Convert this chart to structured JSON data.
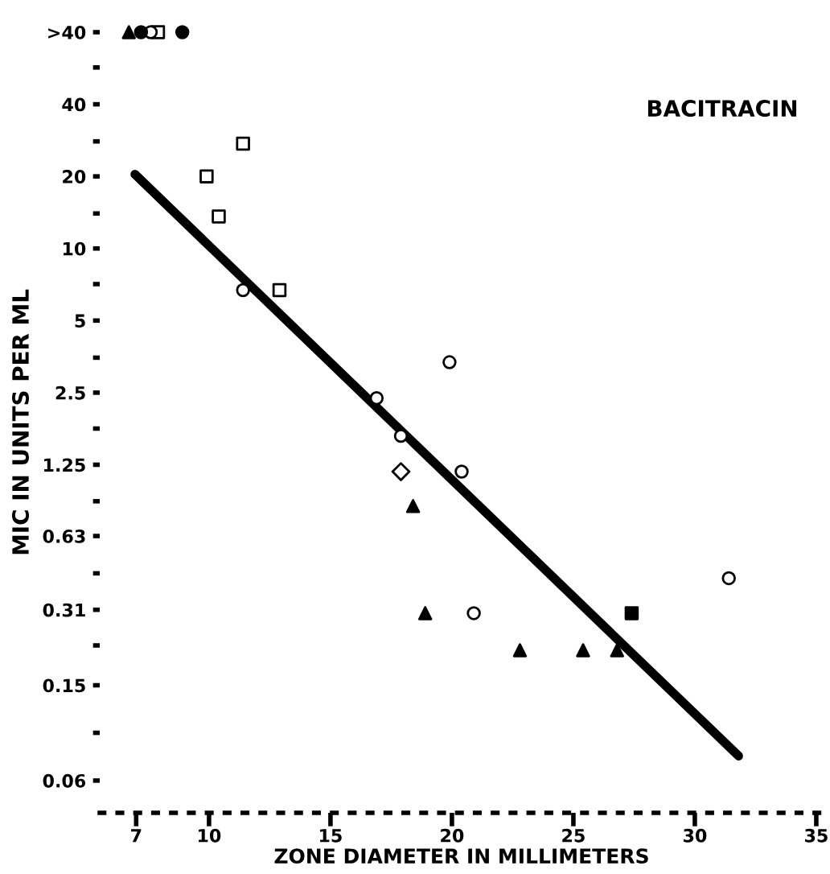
{
  "chart_data": {
    "type": "scatter",
    "title": "BACITRACIN",
    "xlabel": "ZONE DIAMETER IN MILLIMETERS",
    "ylabel": "MIC IN UNITS PER ML",
    "log": "y",
    "xlim": [
      5.5,
      35.3
    ],
    "xticks": [
      7,
      10,
      15,
      20,
      25,
      30,
      35
    ],
    "ylim": [
      0.044,
      80
    ],
    "yticks": [
      0.06,
      {
        "value": 0.095,
        "label": null
      },
      0.15,
      {
        "value": 0.22,
        "label": null
      },
      0.31,
      {
        "value": 0.44,
        "label": null
      },
      0.63,
      {
        "value": 0.88,
        "label": null
      },
      1.25,
      {
        "value": 1.77,
        "label": null
      },
      2.5,
      {
        "value": 3.5,
        "label": null
      },
      5,
      {
        "value": 7.1,
        "label": null
      },
      10,
      {
        "value": 14,
        "label": null
      },
      20,
      {
        "value": 28,
        "label": null
      },
      40,
      {
        "value": 57,
        "label": null
      },
      {
        "value": 80,
        "label": ">40"
      }
    ],
    "grid": false,
    "series": [
      {
        "marker": "square",
        "color": "#ffffff",
        "x": [
          7.9,
          11.4,
          9.9,
          10.4,
          12.9
        ],
        "values": [
          80,
          27.4,
          20,
          13.6,
          6.7
        ]
      },
      {
        "marker": "square",
        "color": "#000000",
        "x": [
          27.4
        ],
        "values": [
          0.3
        ]
      },
      {
        "marker": "circle",
        "color": "#ffffff",
        "x": [
          7.6,
          11.4,
          16.9,
          19.9,
          17.9,
          20.4,
          20.9,
          31.4
        ],
        "values": [
          80,
          6.7,
          2.37,
          3.35,
          1.65,
          1.17,
          0.3,
          0.42
        ]
      },
      {
        "marker": "circle",
        "color": "#000000",
        "x": [
          7.2,
          8.9
        ],
        "values": [
          80,
          80
        ]
      },
      {
        "marker": "triangle",
        "color": "#000000",
        "x": [
          6.7,
          18.4,
          18.9,
          22.8,
          25.4,
          26.8
        ],
        "values": [
          80,
          0.84,
          0.3,
          0.21,
          0.21,
          0.21
        ]
      },
      {
        "marker": "diamond",
        "color": "#ffffff",
        "x": [
          17.9
        ],
        "values": [
          1.17
        ]
      },
      {
        "type": "line",
        "marker": "none",
        "line_style": "solid",
        "color": "#000000",
        "x": [
          6.95,
          31.8
        ],
        "values": [
          20.4,
          0.076
        ]
      }
    ]
  }
}
